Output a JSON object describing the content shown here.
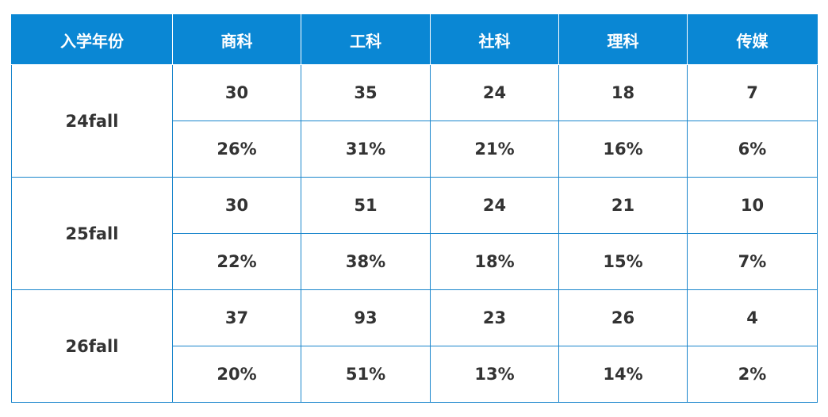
{
  "table": {
    "header": [
      "入学年份",
      "商科",
      "工科",
      "社科",
      "理科",
      "传媒"
    ],
    "groups": [
      {
        "label": "24fall",
        "counts": [
          30,
          35,
          24,
          18,
          7
        ],
        "shares": [
          "26%",
          "31%",
          "21%",
          "16%",
          "6%"
        ]
      },
      {
        "label": "25fall",
        "counts": [
          30,
          51,
          24,
          21,
          10
        ],
        "shares": [
          "22%",
          "38%",
          "18%",
          "15%",
          "7%"
        ]
      },
      {
        "label": "26fall",
        "counts": [
          37,
          93,
          23,
          26,
          4
        ],
        "shares": [
          "20%",
          "51%",
          "13%",
          "14%",
          "2%"
        ]
      }
    ]
  }
}
